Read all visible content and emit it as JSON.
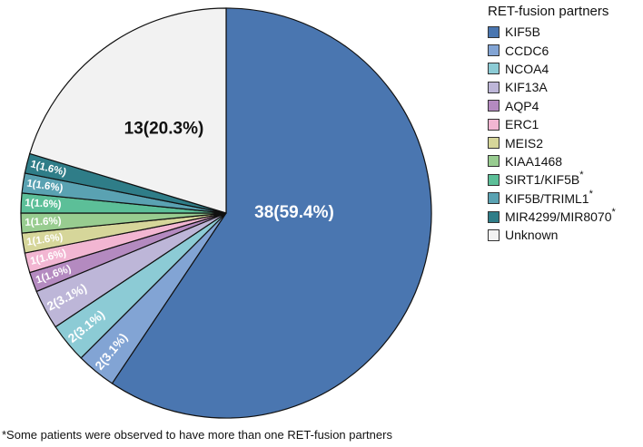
{
  "chart_data": {
    "type": "pie",
    "title": "",
    "legend_title": "RET-fusion partners",
    "legend_position": "right",
    "slices": [
      {
        "name": "KIF5B",
        "asterisk": "",
        "count": 38,
        "percent": 59.4,
        "label": "38(59.4%)",
        "color": "#4a76b0"
      },
      {
        "name": "CCDC6",
        "asterisk": "",
        "count": 2,
        "percent": 3.1,
        "label": "2(3.1%)",
        "color": "#82a4d4"
      },
      {
        "name": "NCOA4",
        "asterisk": "",
        "count": 2,
        "percent": 3.1,
        "label": "2(3.1%)",
        "color": "#8ccbd5"
      },
      {
        "name": "KIF13A",
        "asterisk": "",
        "count": 2,
        "percent": 3.1,
        "label": "2(3.1%)",
        "color": "#bdb6d8"
      },
      {
        "name": "AQP4",
        "asterisk": "",
        "count": 1,
        "percent": 1.6,
        "label": "1(1.6%)",
        "color": "#b48ac0"
      },
      {
        "name": "ERC1",
        "asterisk": "",
        "count": 1,
        "percent": 1.6,
        "label": "1(1.6%)",
        "color": "#f2b6d2"
      },
      {
        "name": "MEIS2",
        "asterisk": "",
        "count": 1,
        "percent": 1.6,
        "label": "1(1.6%)",
        "color": "#d6d69a"
      },
      {
        "name": "KIAA1468",
        "asterisk": "",
        "count": 1,
        "percent": 1.6,
        "label": "1(1.6%)",
        "color": "#98cc90"
      },
      {
        "name": "SIRT1/KIF5B",
        "asterisk": "*",
        "count": 1,
        "percent": 1.6,
        "label": "1(1.6%)",
        "color": "#5cbf98"
      },
      {
        "name": "KIF5B/TRIML1",
        "asterisk": "*",
        "count": 1,
        "percent": 1.6,
        "label": "1(1.6%)",
        "color": "#5aa2b2"
      },
      {
        "name": "MIR4299/MIR8070",
        "asterisk": "*",
        "count": 1,
        "percent": 1.6,
        "label": "1(1.6%)",
        "color": "#2f7d88"
      },
      {
        "name": "Unknown",
        "asterisk": "",
        "count": 13,
        "percent": 20.3,
        "label": "13(20.3%)",
        "color": "#f2f2f2"
      }
    ],
    "footnote": "*Some patients were observed to have more than one RET-fusion partners"
  }
}
